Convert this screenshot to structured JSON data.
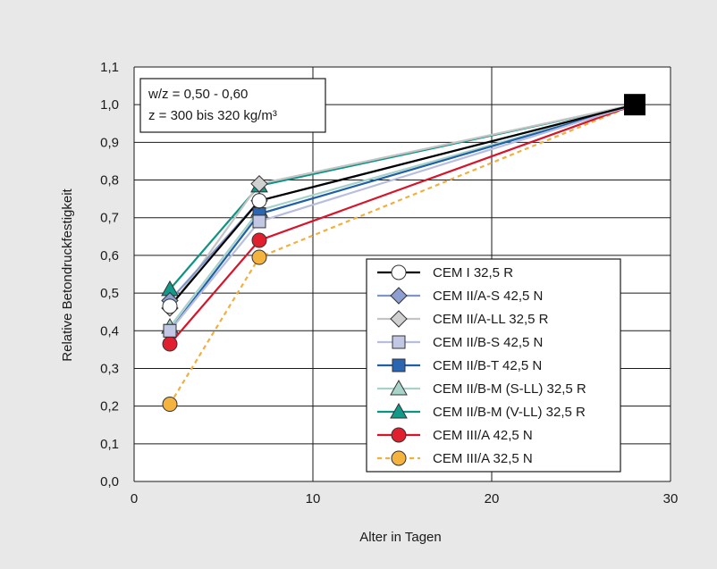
{
  "chart_data": {
    "type": "line",
    "title": "",
    "xlabel": "Alter in Tagen",
    "ylabel": "Relative Betondruckfestigkeit",
    "xlim": [
      0,
      30
    ],
    "ylim": [
      0.0,
      1.1
    ],
    "xticks": [
      0,
      10,
      20,
      30
    ],
    "yticks": [
      0.0,
      0.1,
      0.2,
      0.3,
      0.4,
      0.5,
      0.6,
      0.7,
      0.8,
      0.9,
      1.0,
      1.1
    ],
    "ytick_labels": [
      "0,0",
      "0,1",
      "0,2",
      "0,3",
      "0,4",
      "0,5",
      "0,6",
      "0,7",
      "0,8",
      "0,9",
      "1,0",
      "1,1"
    ],
    "grid": true,
    "legend_position": "bottom-right",
    "annotation": {
      "line1": "w/z = 0,50 - 0,60",
      "line2": "z = 300 bis 320 kg/m³"
    },
    "endpoint": {
      "x": 28,
      "y": 1.0,
      "color": "#000000",
      "marker": "square"
    },
    "series": [
      {
        "name": "CEM I 32,5 R",
        "color": "#000000",
        "fill": "#ffffff",
        "marker": "circle",
        "dashed": false,
        "x": [
          2,
          7,
          28
        ],
        "y": [
          0.465,
          0.745,
          1.0
        ]
      },
      {
        "name": "CEM II/A-S 42,5 N",
        "color": "#7f95c6",
        "fill": "#8c9fd0",
        "marker": "diamond",
        "dashed": false,
        "x": [
          2,
          7,
          28
        ],
        "y": [
          0.48,
          0.745,
          1.0
        ]
      },
      {
        "name": "CEM II/A-LL 32,5 R",
        "color": "#c4c4c4",
        "fill": "#d0d0d0",
        "marker": "diamond",
        "dashed": false,
        "x": [
          2,
          7,
          28
        ],
        "y": [
          0.46,
          0.79,
          1.0
        ]
      },
      {
        "name": "CEM II/B-S 42,5 N",
        "color": "#b8bedd",
        "fill": "#c2c8e4",
        "marker": "square",
        "dashed": false,
        "x": [
          2,
          7,
          28
        ],
        "y": [
          0.4,
          0.69,
          1.0
        ]
      },
      {
        "name": "CEM II/B-T 42,5 N",
        "color": "#1f5fa8",
        "fill": "#2a66b2",
        "marker": "square",
        "dashed": false,
        "x": [
          2,
          7,
          28
        ],
        "y": [
          0.4,
          0.71,
          1.0
        ]
      },
      {
        "name": "CEM II/B-M (S-LL) 32,5 R",
        "color": "#a8d2c9",
        "fill": "#a9d4ca",
        "marker": "triangle",
        "dashed": false,
        "x": [
          2,
          7,
          28
        ],
        "y": [
          0.41,
          0.72,
          1.0
        ]
      },
      {
        "name": "CEM II/B-M (V-LL) 32,5 R",
        "color": "#0e9383",
        "fill": "#12998a",
        "marker": "triangle",
        "dashed": false,
        "x": [
          2,
          7,
          28
        ],
        "y": [
          0.51,
          0.785,
          1.0
        ]
      },
      {
        "name": "CEM III/A 42,5 N",
        "color": "#d7142a",
        "fill": "#e0202f",
        "marker": "circle",
        "dashed": false,
        "x": [
          2,
          7,
          28
        ],
        "y": [
          0.365,
          0.64,
          1.0
        ]
      },
      {
        "name": "CEM III/A 32,5 N",
        "color": "#f0b040",
        "fill": "#f4b23e",
        "marker": "circle",
        "dashed": true,
        "x": [
          2,
          7,
          28
        ],
        "y": [
          0.205,
          0.595,
          1.0
        ]
      }
    ]
  }
}
